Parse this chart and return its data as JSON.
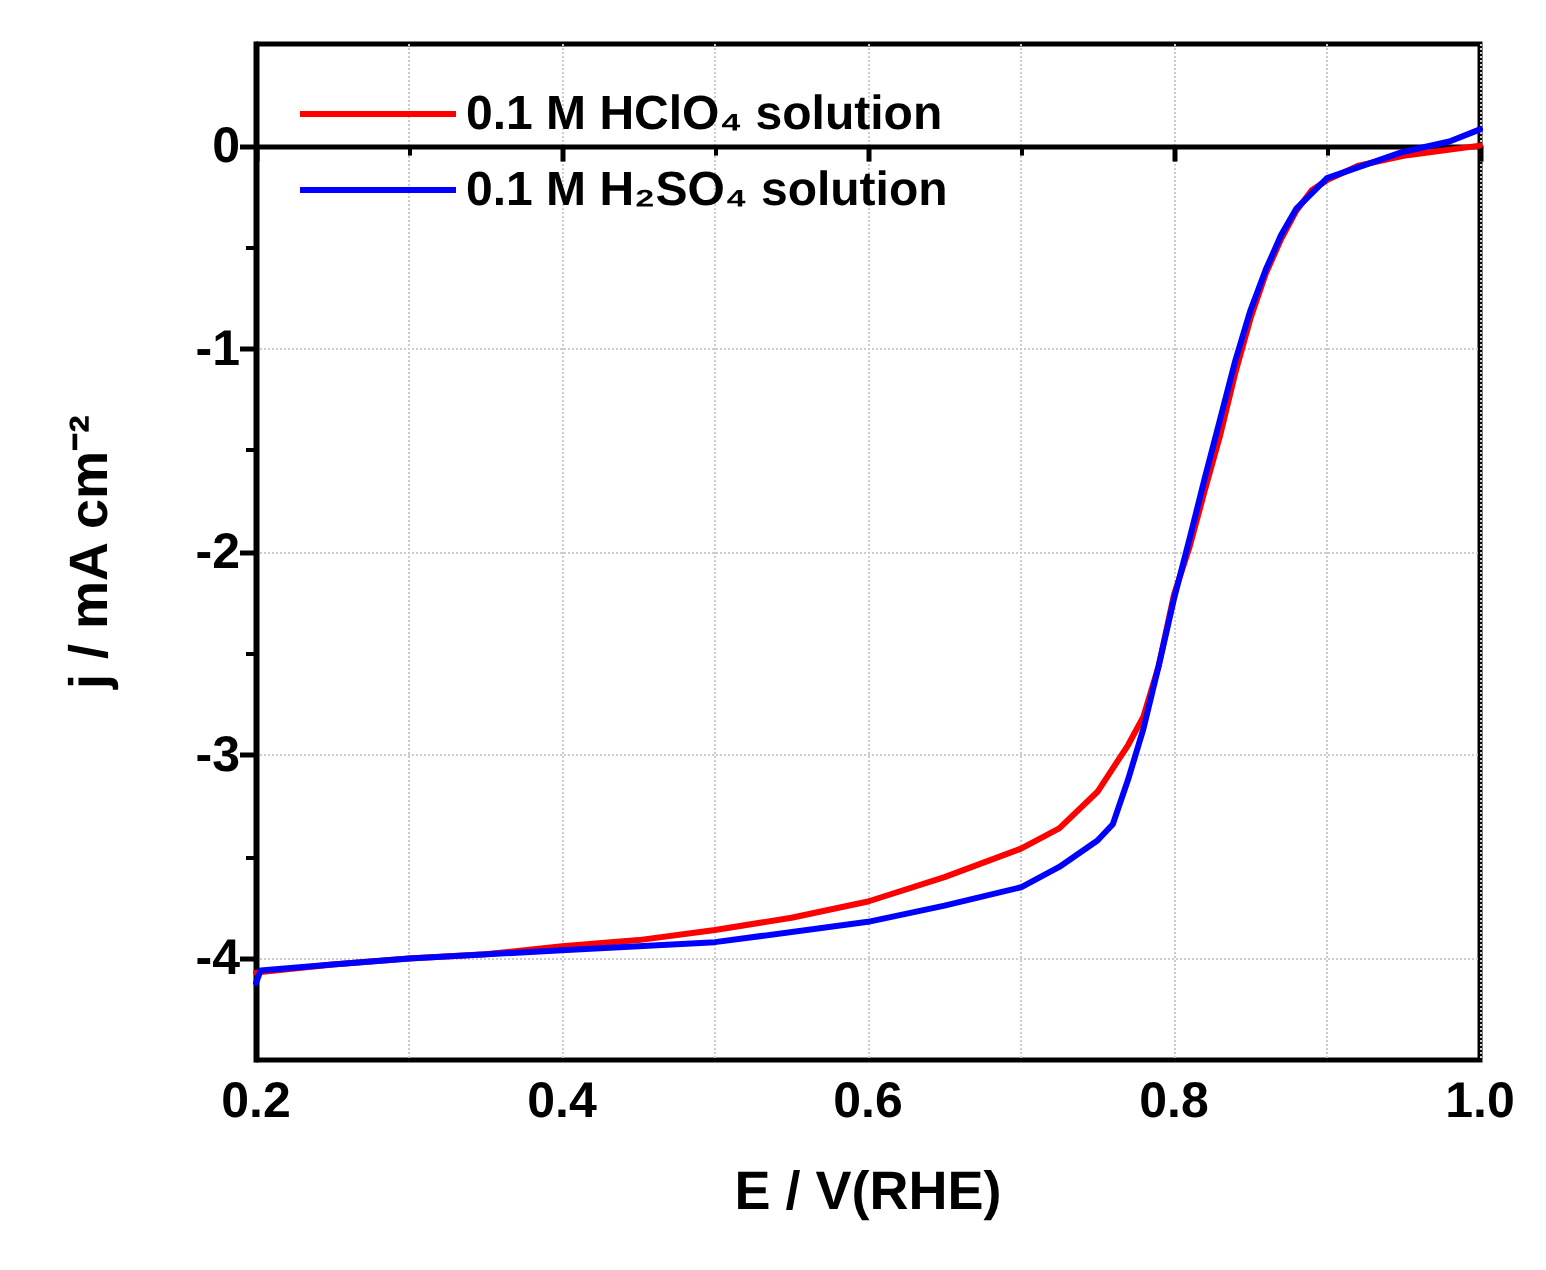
{
  "chart_data": {
    "type": "line",
    "xlabel": "E / V(RHE)",
    "ylabel": "j / mA cm⁻²",
    "xlim": [
      0.2,
      1.0
    ],
    "xticks": [
      0.2,
      0.4,
      0.6,
      0.8,
      {
        "value": 1,
        "label": "1.0"
      }
    ],
    "ylim": [
      -4.5,
      0.5
    ],
    "yticks": [
      -4,
      -3,
      -2,
      -1,
      0
    ],
    "grid": true,
    "legend": "top left",
    "marker": "none",
    "line_style": "solid",
    "series": [
      {
        "name": "0.1 M HClO₄ solution",
        "color": "#ff0000",
        "x": [
          0.2,
          0.25,
          0.3,
          0.35,
          0.4,
          0.45,
          0.5,
          0.55,
          0.6,
          0.65,
          0.7,
          0.725,
          0.75,
          0.77,
          0.78,
          0.79,
          0.8,
          0.81,
          0.82,
          0.83,
          0.84,
          0.85,
          0.86,
          0.87,
          0.88,
          0.89,
          0.9,
          0.92,
          0.95,
          1.0
        ],
        "values": [
          -4.07,
          -4.03,
          -4.0,
          -3.98,
          -3.94,
          -3.91,
          -3.86,
          -3.8,
          -3.72,
          -3.6,
          -3.46,
          -3.36,
          -3.18,
          -2.95,
          -2.81,
          -2.56,
          -2.21,
          -1.98,
          -1.7,
          -1.43,
          -1.12,
          -0.85,
          -0.63,
          -0.46,
          -0.32,
          -0.22,
          -0.17,
          -0.1,
          -0.05,
          0.0
        ]
      },
      {
        "name": "0.1 M H₂SO₄ solution",
        "color": "#0000ff",
        "x": [
          0.2,
          0.203,
          0.25,
          0.3,
          0.4,
          0.5,
          0.6,
          0.65,
          0.7,
          0.725,
          0.75,
          0.76,
          0.77,
          0.78,
          0.79,
          0.8,
          0.81,
          0.82,
          0.83,
          0.84,
          0.85,
          0.86,
          0.87,
          0.88,
          0.9,
          0.95,
          0.98,
          1.0
        ],
        "values": [
          -4.12,
          -4.06,
          -4.03,
          -4.0,
          -3.96,
          -3.92,
          -3.82,
          -3.74,
          -3.65,
          -3.55,
          -3.42,
          -3.34,
          -3.12,
          -2.87,
          -2.56,
          -2.23,
          -1.94,
          -1.64,
          -1.35,
          -1.06,
          -0.81,
          -0.61,
          -0.44,
          -0.31,
          -0.16,
          -0.03,
          0.02,
          0.08
        ]
      }
    ]
  }
}
